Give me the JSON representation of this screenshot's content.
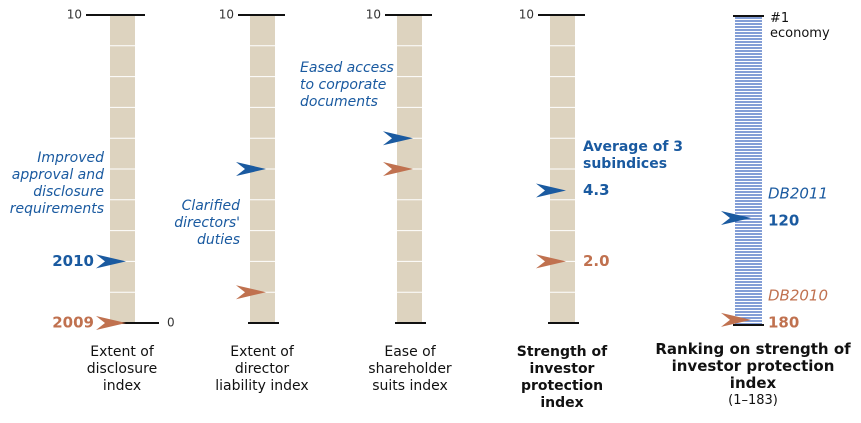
{
  "chart_data": [
    {
      "type": "scale",
      "title": "Extent of disclosure index",
      "annotation": "Improved approval and disclosure requirements",
      "ylim": [
        0,
        10
      ],
      "yticks": [
        0,
        10
      ],
      "series": [
        {
          "name": "2009",
          "color": "#c0714f",
          "values": [
            0
          ]
        },
        {
          "name": "2010",
          "color": "#1a5aa0",
          "values": [
            2
          ]
        }
      ]
    },
    {
      "type": "scale",
      "title": "Extent of director liability index",
      "annotation": "Clarified directors' duties",
      "ylim": [
        0,
        10
      ],
      "yticks": [
        10
      ],
      "series": [
        {
          "color": "#c0714f",
          "values": [
            1
          ]
        },
        {
          "color": "#1a5aa0",
          "values": [
            5
          ]
        }
      ]
    },
    {
      "type": "scale",
      "title": "Ease of shareholder suits index",
      "annotation": "Eased access to corporate documents",
      "ylim": [
        0,
        10
      ],
      "yticks": [
        10
      ],
      "series": [
        {
          "color": "#c0714f",
          "values": [
            5
          ]
        },
        {
          "color": "#1a5aa0",
          "values": [
            6
          ]
        }
      ]
    },
    {
      "type": "scale",
      "title": "Strength of investor protection index",
      "annotation": "Average of 3 subindices",
      "ylim": [
        0,
        10
      ],
      "yticks": [
        10
      ],
      "series": [
        {
          "color": "#c0714f",
          "values": [
            2.0
          ],
          "value_labels": [
            "2.0"
          ]
        },
        {
          "color": "#1a5aa0",
          "values": [
            4.3
          ]
        }
      ]
    },
    {
      "type": "scale",
      "title": "Ranking on strength of investor protection index",
      "subtitle": "(1–183)",
      "top_label": "#1 economy",
      "ylim": [
        183,
        1
      ],
      "striped": true,
      "series": [
        {
          "name": "DB2010",
          "color": "#c0714f",
          "values": [
            180
          ]
        },
        {
          "name": "DB2011",
          "color": "#1a5aa0",
          "values": [
            120
          ]
        }
      ]
    }
  ]
}
